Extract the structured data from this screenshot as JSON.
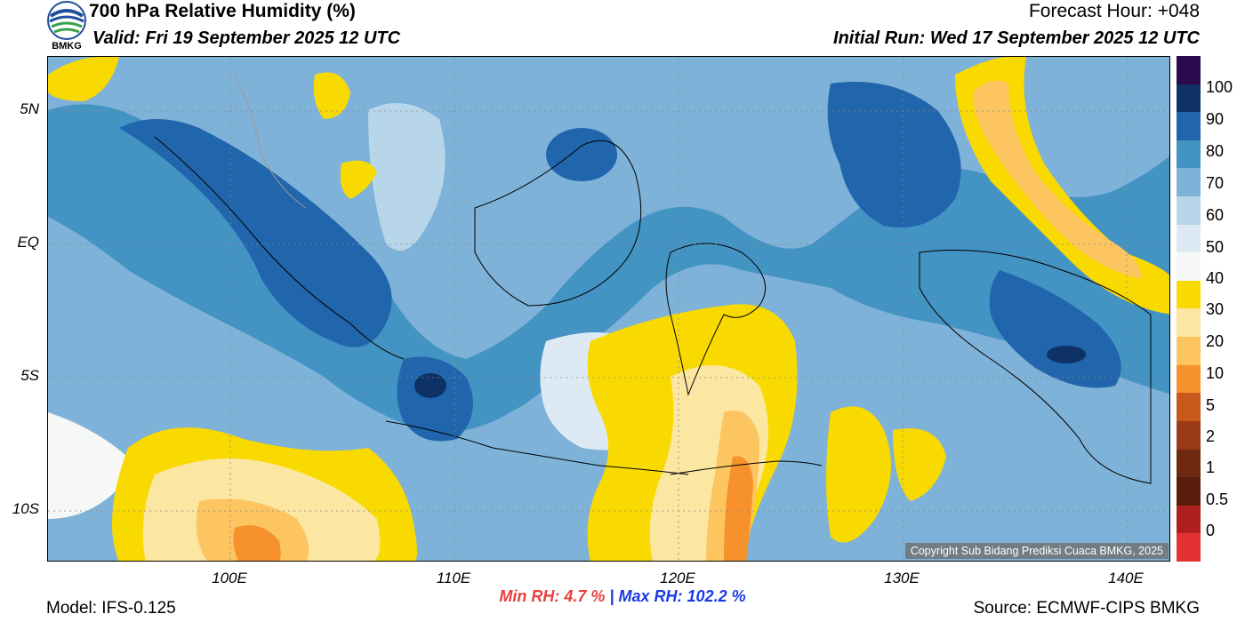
{
  "header": {
    "title": "700 hPa Relative Humidity (%)",
    "valid": "Valid: Fri 19 September 2025 12 UTC",
    "forecast_hour": "Forecast Hour: +048",
    "initial_run": "Initial Run: Wed 17 September 2025 12 UTC",
    "logo_text": "BMKG"
  },
  "map": {
    "lat_labels": [
      "5N",
      "EQ",
      "5S",
      "10S"
    ],
    "lon_labels": [
      "100E",
      "110E",
      "120E",
      "130E",
      "140E"
    ],
    "copyright": "Copyright Sub Bidang Prediksi Cuaca BMKG, 2025"
  },
  "colorbar": {
    "labels": [
      "100",
      "90",
      "80",
      "70",
      "60",
      "50",
      "40",
      "30",
      "20",
      "10",
      "5",
      "2",
      "1",
      "0.5",
      "0"
    ],
    "colors": [
      "#2b0a4e",
      "#0e3266",
      "#2166ac",
      "#4393c3",
      "#7fb2d8",
      "#b8d6ea",
      "#ddeaf3",
      "#f6f7f7",
      "#f9da00",
      "#fbe6a2",
      "#fcc560",
      "#f7912b",
      "#c8581b",
      "#9a3a18",
      "#6d2a10",
      "#5a1d0c",
      "#b01f1f",
      "#e33232"
    ]
  },
  "stats": {
    "min_label": "Min RH:",
    "min_value": "4.7 %",
    "separator": "|",
    "max_label": "Max RH:",
    "max_value": "102.2 %"
  },
  "footer": {
    "model": "Model: IFS-0.125",
    "source": "Source: ECMWF-CIPS BMKG"
  }
}
